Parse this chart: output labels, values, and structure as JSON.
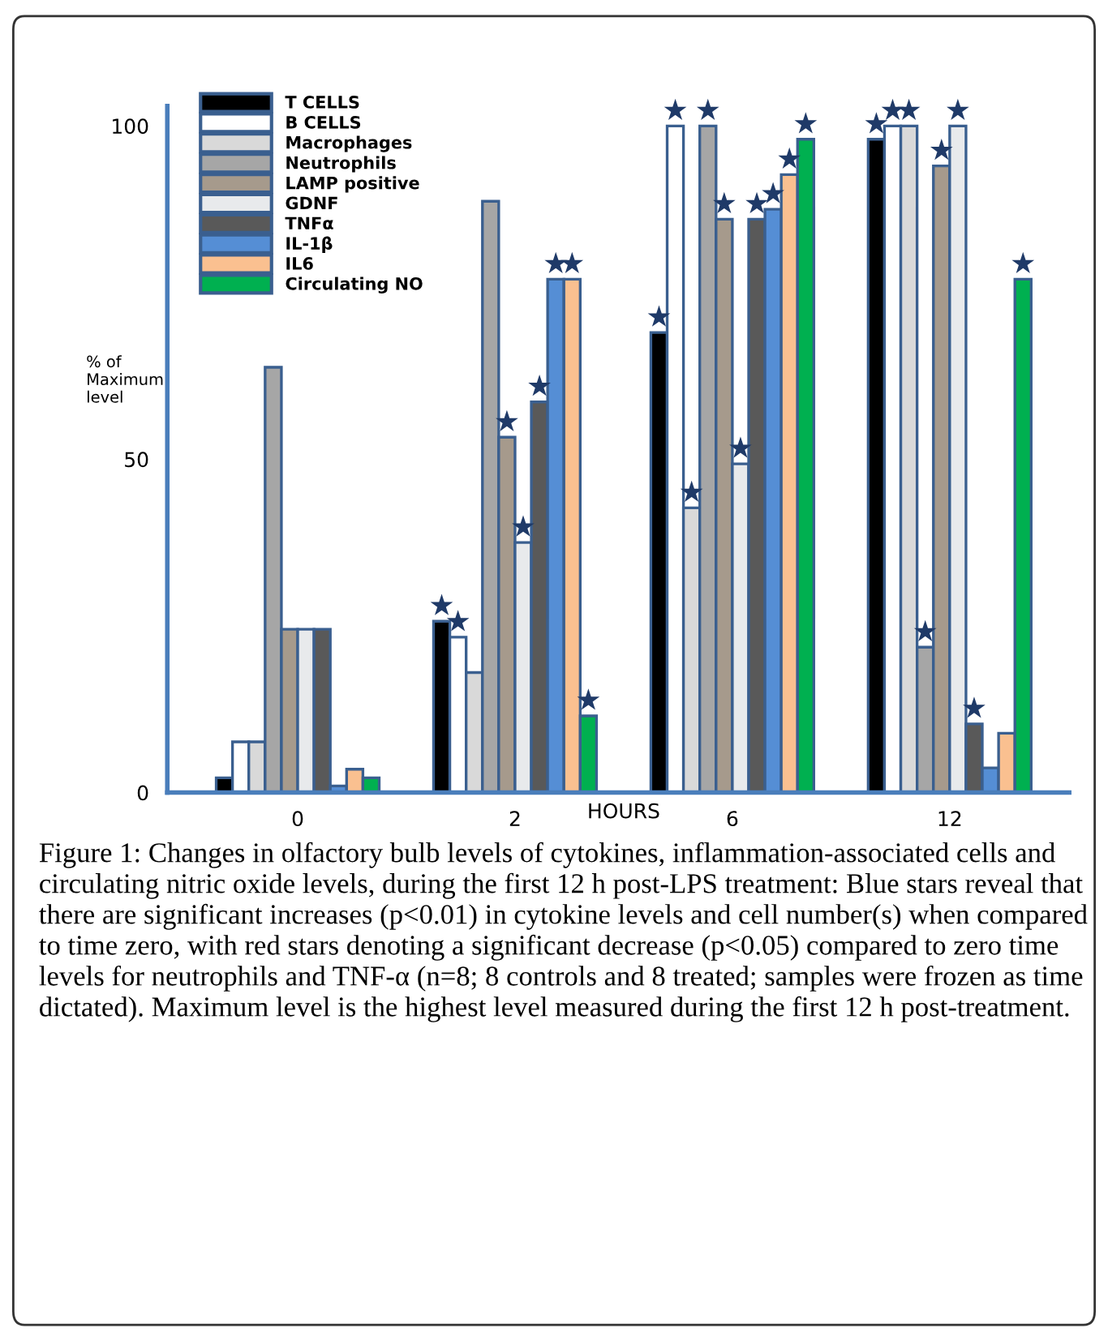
{
  "chart_data": {
    "type": "bar",
    "categories": [
      "0",
      "2",
      "6",
      "12"
    ],
    "xlabel": "HOURS",
    "ylabel": "% of\nMaximum\nlevel",
    "ylim": [
      0,
      103
    ],
    "yticks": [
      0,
      50,
      100
    ],
    "grid": false,
    "legend": "top left",
    "series": [
      {
        "name": "T CELLS",
        "color": "#000000",
        "values": [
          2.2,
          25.7,
          69,
          98
        ],
        "value_labels": [
          null,
          "★",
          "★",
          "★"
        ]
      },
      {
        "name": "B CELLS",
        "color": "#ffffff",
        "values": [
          7.6,
          23.3,
          100,
          100
        ],
        "value_labels": [
          null,
          "★",
          "★",
          "★"
        ]
      },
      {
        "name": "Macrophages",
        "color": "#d9d9d9",
        "values": [
          7.6,
          18,
          42.7,
          100
        ],
        "value_labels": [
          null,
          null,
          "★",
          "★"
        ]
      },
      {
        "name": "Neutrophils",
        "color": "#a6a6a6",
        "values": [
          63.8,
          88.7,
          100,
          21.8
        ],
        "value_labels": [
          null,
          null,
          "★",
          "★"
        ]
      },
      {
        "name": "LAMP positive",
        "color": "#a69a8c",
        "values": [
          24.5,
          53.3,
          86,
          94
        ],
        "value_labels": [
          null,
          "★",
          "★",
          "★"
        ]
      },
      {
        "name": "GDNF",
        "color": "#e8eaec",
        "values": [
          24.5,
          37.5,
          49.3,
          100
        ],
        "value_labels": [
          null,
          "★",
          "★",
          "★"
        ]
      },
      {
        "name": "TNFα",
        "color": "#595959",
        "values": [
          24.5,
          58.6,
          86,
          10.3
        ],
        "value_labels": [
          null,
          "★",
          "★",
          "★"
        ]
      },
      {
        "name": "IL-1β",
        "color": "#558ed5",
        "values": [
          1,
          77,
          87.5,
          3.7
        ],
        "value_labels": [
          null,
          "★",
          "★",
          null
        ]
      },
      {
        "name": "IL6",
        "color": "#fac090",
        "values": [
          3.5,
          77,
          92.7,
          8.9
        ],
        "value_labels": [
          null,
          "★",
          "★",
          null
        ]
      },
      {
        "name": "Circulating NO",
        "color": "#00b050",
        "values": [
          2.2,
          11.5,
          98,
          77
        ],
        "value_labels": [
          null,
          "★",
          "★",
          "★"
        ]
      }
    ],
    "annotations": [
      "Figure 1: Changes in olfactory bulb levels of cytokines, inflammation-associated cells and circulating nitric oxide levels, during the first 12 h post-LPS treatment: Blue stars reveal that there are significant increases (p<0.01) in cytokine levels and cell number(s) when compared to time zero, with red stars denoting a significant decrease (p<0.05) compared to zero time levels for neutrophils and TNF-α (n=8; 8 controls and 8 treated; samples were frozen as time dictated). Maximum level is the highest level measured during the first 12 h post-treatment."
    ]
  }
}
